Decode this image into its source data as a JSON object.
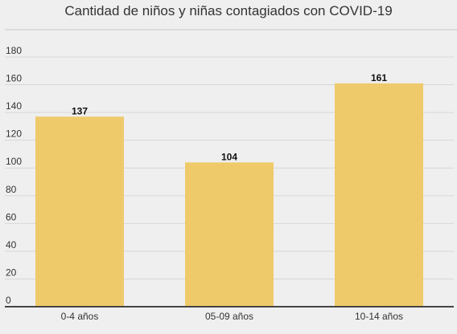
{
  "chart_data": {
    "type": "bar",
    "title": "Cantidad de niños y niñas contagiados con COVID-19",
    "categories": [
      "0-4 años",
      "05-09 años",
      "10-14 años"
    ],
    "values": [
      137,
      104,
      161
    ],
    "data_labels": [
      "137",
      "104",
      "161"
    ],
    "ylim": [
      0,
      180
    ],
    "yticks": [
      "0",
      "20",
      "40",
      "60",
      "80",
      "100",
      "120",
      "140",
      "160",
      "180"
    ],
    "grid": true,
    "legend": "none",
    "xlabel": "",
    "ylabel": ""
  },
  "colors": {
    "bar": "#efca6b",
    "grid": "#d7d7d7",
    "axis": "#444444",
    "background": "#efefef"
  }
}
